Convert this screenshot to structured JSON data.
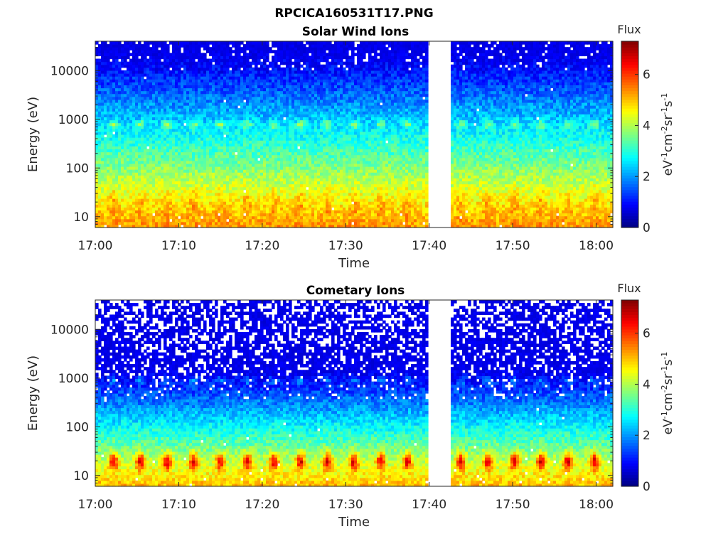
{
  "figure": {
    "title": "RPCICA160531T17.PNG"
  },
  "chart_data": [
    {
      "type": "heatmap",
      "title": "Solar Wind Ions",
      "xlabel": "Time",
      "ylabel": "Energy (eV)",
      "x_ticks": [
        "17:00",
        "17:10",
        "17:20",
        "17:30",
        "17:40",
        "17:50",
        "18:00"
      ],
      "x_range": [
        "17:00",
        "18:02"
      ],
      "y_scale": "log",
      "y_ticks": [
        "10",
        "100",
        "1000",
        "10000"
      ],
      "y_range_eV": [
        6,
        40000
      ],
      "data_gap": [
        "17:39:45",
        "17:42:45"
      ],
      "dominant_features": [
        {
          "description": "low energy band",
          "energy_eV": 22,
          "level": 4.8
        },
        {
          "description": "periodic peaks near 800 eV",
          "energy_eV": 800,
          "level": 4.3
        }
      ],
      "pulse_period_minutes": 3.2,
      "colorbar": {
        "label": "Flux",
        "unit_label": "eV-1cm-2sr-1s-1",
        "range": [
          0,
          7.3
        ],
        "ticks": [
          "0",
          "2",
          "4",
          "6"
        ]
      }
    },
    {
      "type": "heatmap",
      "title": "Cometary Ions",
      "xlabel": "Time",
      "ylabel": "Energy (eV)",
      "x_ticks": [
        "17:00",
        "17:10",
        "17:20",
        "17:30",
        "17:40",
        "17:50",
        "18:00"
      ],
      "x_range": [
        "17:00",
        "18:02"
      ],
      "y_scale": "log",
      "y_ticks": [
        "10",
        "100",
        "1000",
        "10000"
      ],
      "y_range_eV": [
        6,
        40000
      ],
      "data_gap": [
        "17:39:45",
        "17:42:45"
      ],
      "dominant_features": [
        {
          "description": "intense low energy peaks",
          "energy_eV": 20,
          "level": 6.6
        },
        {
          "description": "weak peaks near 900 eV",
          "energy_eV": 900,
          "level": 2.6
        }
      ],
      "pulse_period_minutes": 3.2,
      "colorbar": {
        "label": "Flux",
        "unit_label": "eV-1cm-2sr-1s-1",
        "range": [
          0,
          7.3
        ],
        "ticks": [
          "0",
          "2",
          "4",
          "6"
        ]
      }
    }
  ]
}
